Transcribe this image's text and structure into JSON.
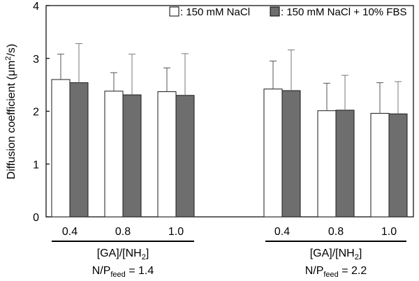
{
  "chart_data": {
    "type": "bar",
    "ylabel_main": "Diffusion coefficient (μm",
    "ylabel_sup": "2",
    "ylabel_tail": "/s)",
    "ylim": [
      0,
      4
    ],
    "y_ticks": [
      "0",
      "1",
      "2",
      "3",
      "4"
    ],
    "grid": false,
    "legend_position": "top-right",
    "legend": [
      {
        "prefix": ": 150 mM NaCl",
        "color": "#ffffff"
      },
      {
        "prefix": ": 150 mM NaCl + 10% FBS",
        "color": "#6e6e6e"
      }
    ],
    "groups": [
      {
        "axis_label_main": "[GA]/[NH",
        "axis_label_sub": "2",
        "axis_label_tail": "]",
        "feed_label_main": "N/P",
        "feed_label_sub": "feed",
        "feed_label_tail": " = 1.4",
        "categories": [
          "0.4",
          "0.8",
          "1.0"
        ],
        "series": [
          {
            "name": "150 mM NaCl",
            "values": [
              2.6,
              2.38,
              2.37
            ],
            "errors": [
              0.48,
              0.35,
              0.45
            ]
          },
          {
            "name": "150 mM NaCl + 10% FBS",
            "values": [
              2.54,
              2.31,
              2.3
            ],
            "errors": [
              0.74,
              0.77,
              0.79
            ]
          }
        ]
      },
      {
        "axis_label_main": "[GA]/[NH",
        "axis_label_sub": "2",
        "axis_label_tail": "]",
        "feed_label_main": "N/P",
        "feed_label_sub": "feed",
        "feed_label_tail": " = 2.2",
        "categories": [
          "0.4",
          "0.8",
          "1.0"
        ],
        "series": [
          {
            "name": "150 mM NaCl",
            "values": [
              2.42,
              2.01,
              1.96
            ],
            "errors": [
              0.53,
              0.52,
              0.58
            ]
          },
          {
            "name": "150 mM NaCl + 10% FBS",
            "values": [
              2.39,
              2.02,
              1.95
            ],
            "errors": [
              0.77,
              0.66,
              0.61
            ]
          }
        ]
      }
    ]
  }
}
